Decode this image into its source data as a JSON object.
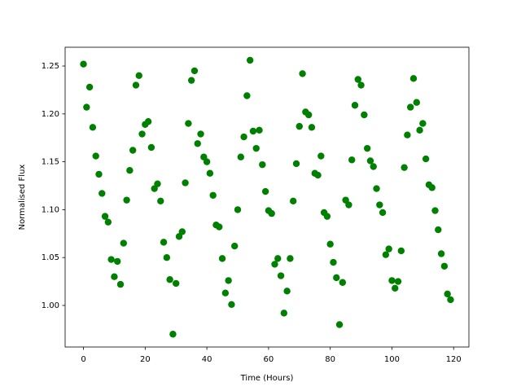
{
  "chart_data": {
    "type": "scatter",
    "xlabel": "Time (Hours)",
    "ylabel": "Normalised Flux",
    "color": "#008000",
    "x": [
      0,
      1,
      2,
      3,
      4,
      5,
      6,
      7,
      8,
      9,
      10,
      11,
      12,
      13,
      14,
      15,
      16,
      17,
      18,
      19,
      20,
      21,
      22,
      23,
      24,
      25,
      26,
      27,
      28,
      29,
      30,
      31,
      32,
      33,
      34,
      35,
      36,
      37,
      38,
      39,
      40,
      41,
      42,
      43,
      44,
      45,
      46,
      47,
      48,
      49,
      50,
      51,
      52,
      53,
      54,
      55,
      56,
      57,
      58,
      59,
      60,
      61,
      62,
      63,
      64,
      65,
      66,
      67,
      68,
      69,
      70,
      71,
      72,
      73,
      74,
      75,
      76,
      77,
      78,
      79,
      80,
      81,
      82,
      83,
      84,
      85,
      86,
      87,
      88,
      89,
      90,
      91,
      92,
      93,
      94,
      95,
      96,
      97,
      98,
      99,
      100,
      101,
      102,
      103,
      104,
      105,
      106,
      107,
      108,
      109,
      110,
      111,
      112,
      113,
      114,
      115,
      116,
      117,
      118,
      119
    ],
    "values": [
      1.252,
      1.207,
      1.228,
      1.186,
      1.156,
      1.137,
      1.117,
      1.093,
      1.087,
      1.048,
      1.03,
      1.046,
      1.022,
      1.065,
      1.11,
      1.141,
      1.162,
      1.23,
      1.24,
      1.179,
      1.189,
      1.192,
      1.165,
      1.122,
      1.127,
      1.109,
      1.066,
      1.05,
      1.027,
      0.97,
      1.023,
      1.072,
      1.077,
      1.128,
      1.19,
      1.235,
      1.245,
      1.169,
      1.179,
      1.155,
      1.15,
      1.138,
      1.115,
      1.084,
      1.082,
      1.049,
      1.013,
      1.026,
      1.001,
      1.062,
      1.1,
      1.155,
      1.176,
      1.219,
      1.256,
      1.182,
      1.164,
      1.183,
      1.147,
      1.119,
      1.099,
      1.096,
      1.043,
      1.049,
      1.031,
      0.992,
      1.015,
      1.049,
      1.109,
      1.148,
      1.187,
      1.242,
      1.202,
      1.199,
      1.186,
      1.138,
      1.136,
      1.156,
      1.097,
      1.093,
      1.064,
      1.045,
      1.029,
      0.98,
      1.024,
      1.11,
      1.105,
      1.152,
      1.209,
      1.236,
      1.23,
      1.199,
      1.164,
      1.151,
      1.145,
      1.122,
      1.105,
      1.097,
      1.053,
      1.059,
      1.026,
      1.018,
      1.025,
      1.057,
      1.144,
      1.178,
      1.207,
      1.237,
      1.212,
      1.183,
      1.19,
      1.153,
      1.126,
      1.123,
      1.099,
      1.079,
      1.054,
      1.041,
      1.012,
      1.006
    ],
    "xlim": [
      -5.95,
      124.95
    ],
    "xticks": [
      0,
      20,
      40,
      60,
      80,
      100,
      120
    ],
    "ylim": [
      0.9566,
      1.2696
    ],
    "yticks": [
      {
        "value": 1.0,
        "label": "1.00"
      },
      1.05,
      {
        "value": 1.1,
        "label": "1.10"
      },
      1.15,
      {
        "value": 1.2,
        "label": "1.20"
      },
      1.25
    ]
  }
}
